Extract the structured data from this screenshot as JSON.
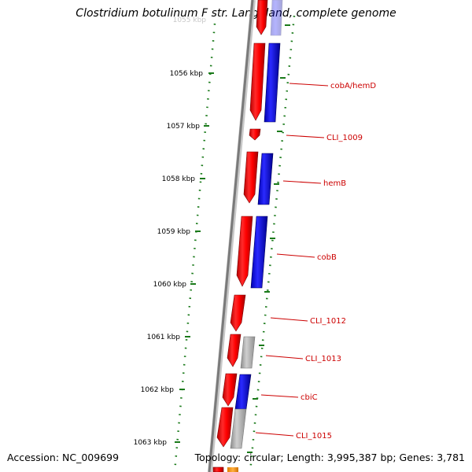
{
  "title": "Clostridium botulinum F str. Langeland, complete genome",
  "footer": {
    "accession": "Accession: NC_009699",
    "info": "Topology: circular; Length: 3,995,387 bp; Genes: 3,781"
  },
  "ruler": {
    "unit": "kbp",
    "labels": [
      "1055 kbp",
      "1056 kbp",
      "1057 kbp",
      "1058 kbp",
      "1059 kbp",
      "1060 kbp",
      "1061 kbp",
      "1062 kbp",
      "1063 kbp"
    ]
  },
  "genes": [
    {
      "name": "cobA/hemD"
    },
    {
      "name": "CLI_1009"
    },
    {
      "name": "hemB"
    },
    {
      "name": "cobB"
    },
    {
      "name": "CLI_1012"
    },
    {
      "name": "CLI_1013"
    },
    {
      "name": "cbiC"
    },
    {
      "name": "CLI_1015"
    }
  ],
  "colors": {
    "backbone": "#8a8a8a",
    "gene_forward": "#ff0000",
    "cds_blue": "#0000ff",
    "cds_gray": "#b3b3b3",
    "tick_green": "#1a7a1a",
    "label_red": "#cc0000",
    "bottom_orange": "#ffa020"
  }
}
